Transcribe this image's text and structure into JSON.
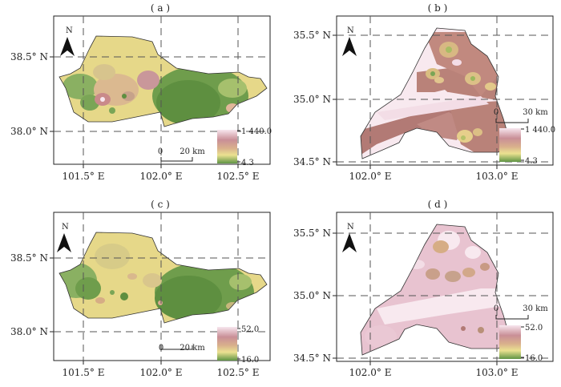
{
  "panels": [
    {
      "label": "( a )",
      "y_ticks": [
        "38.5° N",
        "38.0° N"
      ],
      "x_ticks": [
        "101.5° E",
        "102.0° E",
        "102.5° E"
      ],
      "scale_bar": {
        "zero": "0",
        "distance": "20 km"
      },
      "legend": {
        "max": "1 440.0",
        "min": "4.3"
      }
    },
    {
      "label": "( b )",
      "y_ticks": [
        "35.5° N",
        "35.0° N",
        "34.5° N"
      ],
      "x_ticks": [
        "102.0° E",
        "103.0° E"
      ],
      "scale_bar": {
        "zero": "0",
        "distance": "30 km"
      },
      "legend": {
        "max": "1 440.0",
        "min": "4.3"
      }
    },
    {
      "label": "( c )",
      "y_ticks": [
        "38.5° N",
        "38.0° N"
      ],
      "x_ticks": [
        "101.5° E",
        "102.0° E",
        "102.5° E"
      ],
      "scale_bar": {
        "zero": "0",
        "distance": "20 km"
      },
      "legend": {
        "max": "52.0",
        "min": "16.0"
      }
    },
    {
      "label": "( d )",
      "y_ticks": [
        "35.5° N",
        "35.0° N",
        "34.5° N"
      ],
      "x_ticks": [
        "102.0° E",
        "103.0° E"
      ],
      "scale_bar": {
        "zero": "0",
        "distance": "30 km"
      },
      "legend": {
        "max": "52.0",
        "min": "16.0"
      }
    }
  ],
  "north_arrow": "N",
  "colors": {
    "high": "#f4dfe8",
    "mid_pink": "#c98a8a",
    "mid_tan": "#d6ad85",
    "mid_yellow": "#e9dc8e",
    "low_green": "#6b9a4a",
    "pale": "#f8e9ef",
    "rose": "#b27a75"
  }
}
